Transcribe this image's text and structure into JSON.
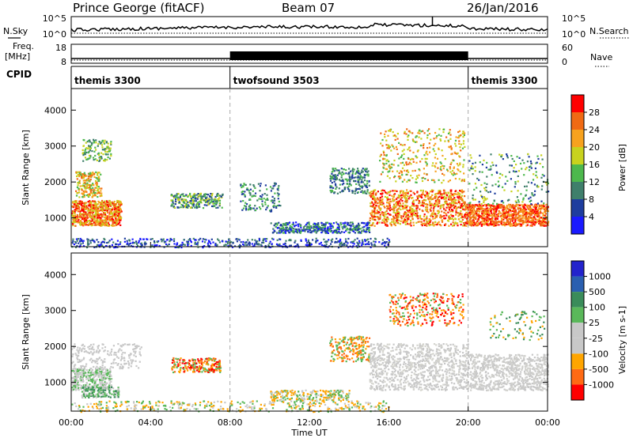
{
  "header": {
    "station": "Prince George (fitACF)",
    "beam": "Beam 07",
    "date": "26/Jan/2016"
  },
  "side_labels": {
    "nsky": "N.Sky",
    "freq_line1": "Freq.",
    "freq_line2": "[MHz]",
    "cpid": "CPID",
    "nsearch": "N.Search",
    "nave": "Nave"
  },
  "colors": {
    "power_scale": [
      "#1a1aff",
      "#1e3d9e",
      "#3f7f6b",
      "#4db84d",
      "#c8d21e",
      "#f7a21e",
      "#f06a14",
      "#ff0000"
    ],
    "velocity_scale": [
      "#ff0000",
      "#ff6a14",
      "#ffa500",
      "#c8c8c8",
      "#c8c8c8",
      "#5ab85a",
      "#3a8c5a",
      "#2a5fb0",
      "#2323cc"
    ],
    "dashed_line": "#aaaaaa"
  },
  "chart_data": [
    {
      "type": "line",
      "title": "",
      "ylabel": "N.Sky",
      "y2label": "N.Search",
      "yticks": [
        "10^5",
        "10^0"
      ],
      "y2ticks": [
        "10^5",
        "10^0"
      ]
    },
    {
      "type": "line",
      "ylabel": "Freq. [MHz]",
      "y2label": "Nave",
      "yticks": [
        "18",
        "8"
      ],
      "y2ticks": [
        "60",
        "0"
      ],
      "freq_mhz": 10.5,
      "nave_max": 60
    },
    {
      "type": "table",
      "label": "CPID",
      "segments": [
        {
          "name": "themis 3300",
          "start_h": 0,
          "end_h": 8
        },
        {
          "name": "twofsound 3503",
          "start_h": 8,
          "end_h": 20
        },
        {
          "name": "themis 3300",
          "start_h": 20,
          "end_h": 24
        }
      ]
    },
    {
      "type": "heatmap",
      "parameter": "power",
      "ylabel": "Slant Range [km]",
      "yticks": [
        1000,
        2000,
        3000,
        4000
      ],
      "ylim": [
        200,
        4600
      ],
      "colorbar_label": "Power [dB]",
      "colorbar_ticks": [
        4,
        8,
        12,
        16,
        20,
        24,
        28
      ],
      "clim": [
        0,
        32
      ],
      "mode_change_hours": [
        8,
        20
      ]
    },
    {
      "type": "heatmap",
      "parameter": "velocity",
      "ylabel": "Slant Range [km]",
      "yticks": [
        1000,
        2000,
        3000,
        4000
      ],
      "ylim": [
        200,
        4600
      ],
      "colorbar_label": "Velocity [m s-1]",
      "colorbar_ticks": [
        1000,
        500,
        100,
        25,
        -25,
        -100,
        -500,
        -1000
      ],
      "mode_change_hours": [
        8,
        20
      ]
    }
  ],
  "x_axis": {
    "label": "Time UT",
    "ticks": [
      "00:00",
      "04:00",
      "08:00",
      "12:00",
      "16:00",
      "20:00",
      "00:00"
    ],
    "range_h": [
      0,
      24
    ]
  }
}
